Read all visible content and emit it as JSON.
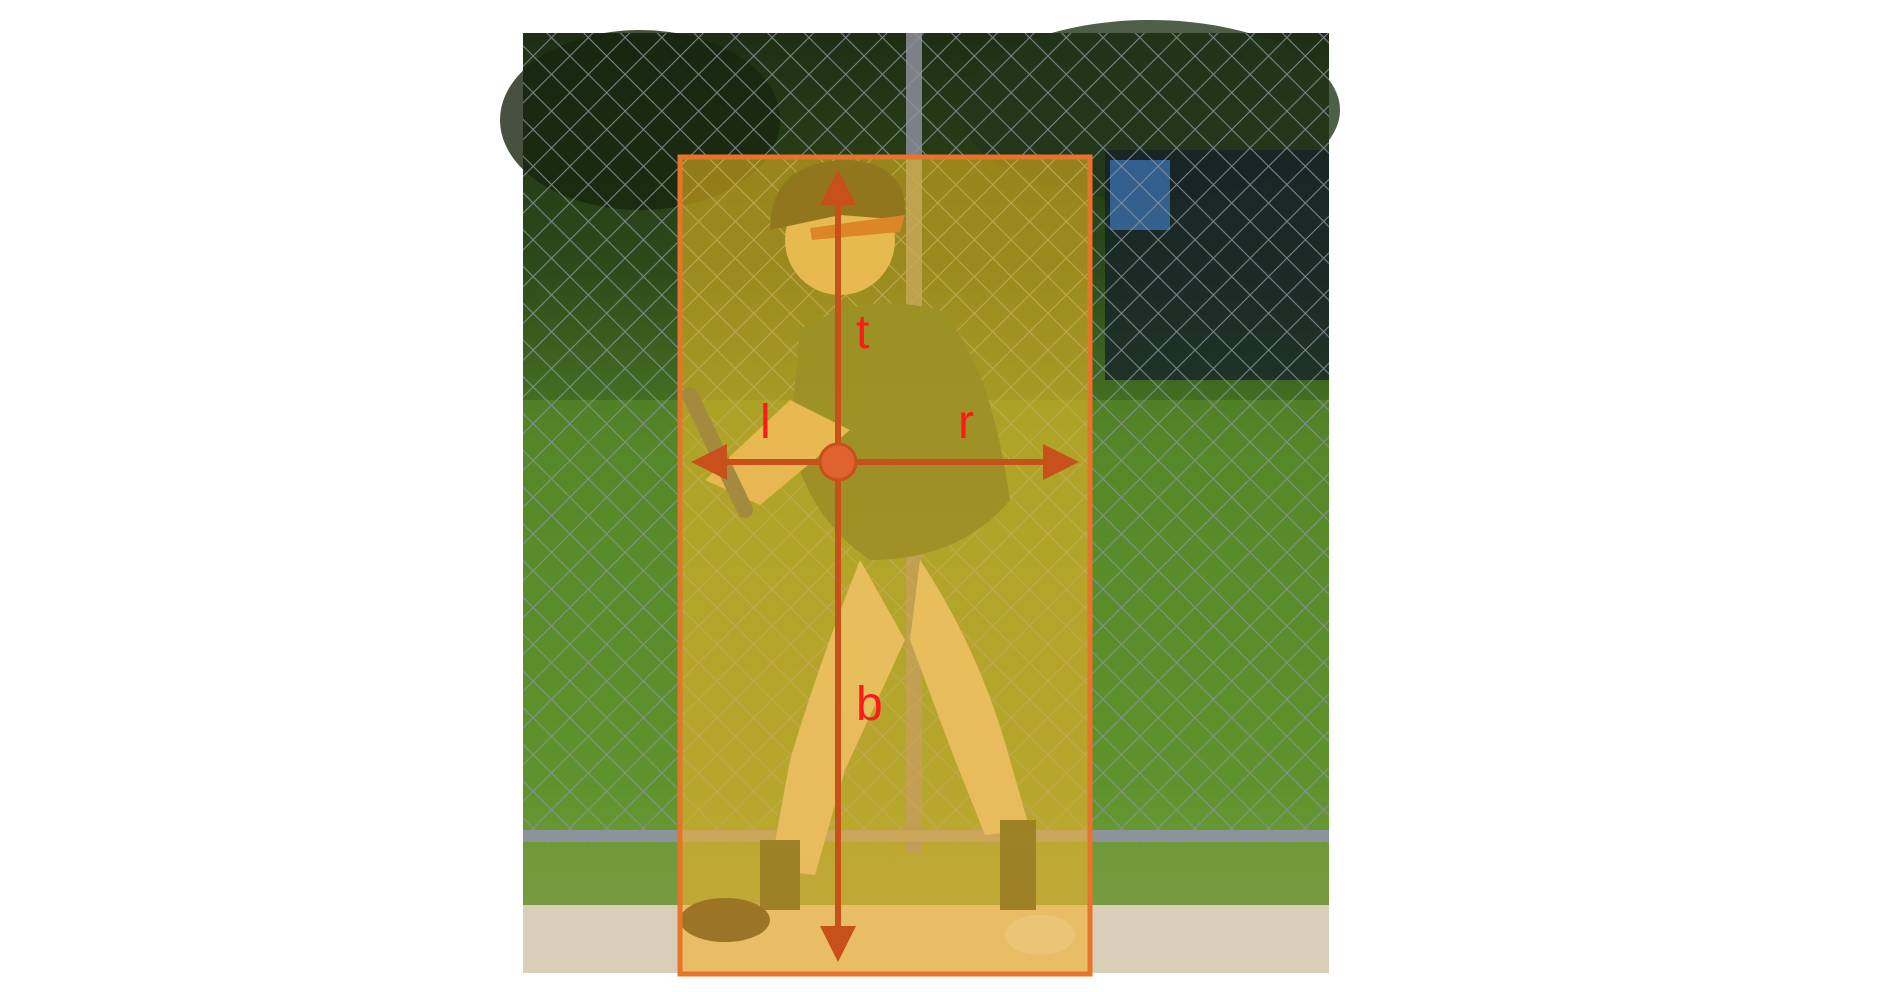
{
  "figure": {
    "subject": "baseball batter",
    "box_color": "#E8742A",
    "box_fill": "#F2C020",
    "arrow_color": "#C8501A",
    "label_color": "#FF1A1A"
  },
  "labels": {
    "top": "t",
    "left": "l",
    "right": "r",
    "bottom": "b"
  }
}
